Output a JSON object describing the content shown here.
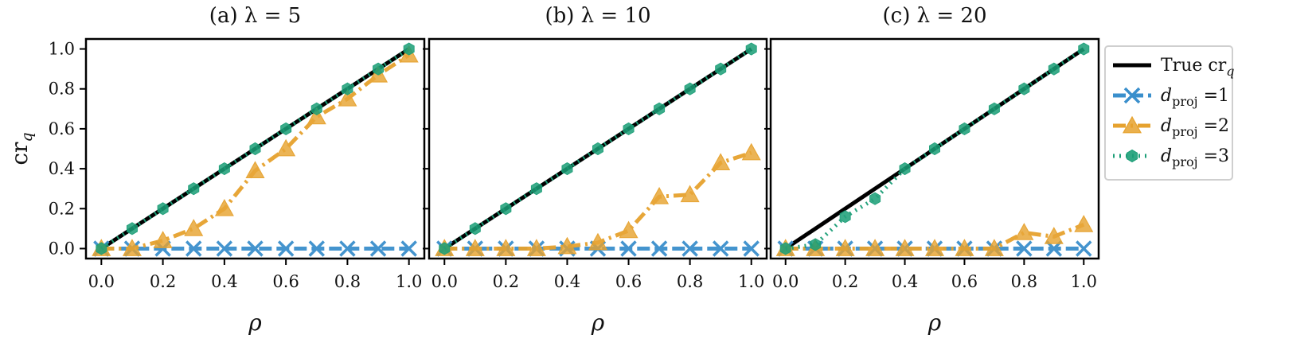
{
  "chart_data": [
    {
      "type": "line",
      "title": "(a) λ = 5",
      "xlabel": "ρ",
      "ylabel": "cr_q",
      "xlim": [
        -0.05,
        1.05
      ],
      "ylim": [
        -0.05,
        1.05
      ],
      "xticks": [
        0.0,
        0.2,
        0.4,
        0.6,
        0.8,
        1.0
      ],
      "yticks": [
        0.0,
        0.2,
        0.4,
        0.6,
        0.8,
        1.0
      ],
      "series": [
        {
          "name": "True cr_q",
          "x": [
            0,
            1
          ],
          "y": [
            0,
            1
          ]
        },
        {
          "name": "d_proj =1",
          "x": [
            0,
            0.1,
            0.2,
            0.3,
            0.4,
            0.5,
            0.6,
            0.7,
            0.8,
            0.9,
            1.0
          ],
          "y": [
            0,
            0,
            0,
            0,
            0,
            0,
            0,
            0,
            0,
            0,
            0
          ]
        },
        {
          "name": "d_proj =2",
          "x": [
            0,
            0.1,
            0.2,
            0.3,
            0.4,
            0.5,
            0.6,
            0.7,
            0.8,
            0.9,
            1.0
          ],
          "y": [
            0,
            0,
            0.04,
            0.1,
            0.2,
            0.39,
            0.5,
            0.66,
            0.75,
            0.87,
            0.97
          ]
        },
        {
          "name": "d_proj =3",
          "x": [
            0,
            0.1,
            0.2,
            0.3,
            0.4,
            0.5,
            0.6,
            0.7,
            0.8,
            0.9,
            1.0
          ],
          "y": [
            0,
            0.1,
            0.2,
            0.3,
            0.4,
            0.5,
            0.6,
            0.7,
            0.8,
            0.9,
            1.0
          ]
        }
      ]
    },
    {
      "type": "line",
      "title": "(b) λ = 10",
      "xlabel": "ρ",
      "xlim": [
        -0.05,
        1.05
      ],
      "ylim": [
        -0.05,
        1.05
      ],
      "xticks": [
        0.0,
        0.2,
        0.4,
        0.6,
        0.8,
        1.0
      ],
      "yticks": [
        0.0,
        0.2,
        0.4,
        0.6,
        0.8,
        1.0
      ],
      "series": [
        {
          "name": "True cr_q",
          "x": [
            0,
            1
          ],
          "y": [
            0,
            1
          ]
        },
        {
          "name": "d_proj =1",
          "x": [
            0,
            0.1,
            0.2,
            0.3,
            0.4,
            0.5,
            0.6,
            0.7,
            0.8,
            0.9,
            1.0
          ],
          "y": [
            0,
            0,
            0,
            0,
            0,
            0,
            0,
            0,
            0,
            0,
            0
          ]
        },
        {
          "name": "d_proj =2",
          "x": [
            0,
            0.1,
            0.2,
            0.3,
            0.4,
            0.5,
            0.6,
            0.7,
            0.8,
            0.9,
            1.0
          ],
          "y": [
            0,
            0,
            0,
            0,
            0.01,
            0.03,
            0.09,
            0.26,
            0.27,
            0.43,
            0.48
          ]
        },
        {
          "name": "d_proj =3",
          "x": [
            0,
            0.1,
            0.2,
            0.3,
            0.4,
            0.5,
            0.6,
            0.7,
            0.8,
            0.9,
            1.0
          ],
          "y": [
            0,
            0.1,
            0.2,
            0.3,
            0.4,
            0.5,
            0.6,
            0.7,
            0.8,
            0.9,
            1.0
          ]
        }
      ]
    },
    {
      "type": "line",
      "title": "(c) λ = 20",
      "xlabel": "ρ",
      "xlim": [
        -0.05,
        1.05
      ],
      "ylim": [
        -0.05,
        1.05
      ],
      "xticks": [
        0.0,
        0.2,
        0.4,
        0.6,
        0.8,
        1.0
      ],
      "yticks": [
        0.0,
        0.2,
        0.4,
        0.6,
        0.8,
        1.0
      ],
      "series": [
        {
          "name": "True cr_q",
          "x": [
            0,
            1
          ],
          "y": [
            0,
            1
          ]
        },
        {
          "name": "d_proj =1",
          "x": [
            0,
            0.1,
            0.2,
            0.3,
            0.4,
            0.5,
            0.6,
            0.7,
            0.8,
            0.9,
            1.0
          ],
          "y": [
            0,
            0,
            0,
            0,
            0,
            0,
            0,
            0,
            0,
            0,
            0
          ]
        },
        {
          "name": "d_proj =2",
          "x": [
            0,
            0.1,
            0.2,
            0.3,
            0.4,
            0.5,
            0.6,
            0.7,
            0.8,
            0.9,
            1.0
          ],
          "y": [
            0,
            0,
            0,
            0,
            0,
            0,
            0,
            0,
            0.08,
            0.06,
            0.12
          ]
        },
        {
          "name": "d_proj =3",
          "x": [
            0,
            0.1,
            0.2,
            0.3,
            0.4,
            0.5,
            0.6,
            0.7,
            0.8,
            0.9,
            1.0
          ],
          "y": [
            0,
            0.02,
            0.16,
            0.25,
            0.4,
            0.5,
            0.6,
            0.7,
            0.8,
            0.9,
            1.0
          ]
        }
      ]
    }
  ],
  "legend": {
    "placement": "right",
    "items": [
      {
        "label": "True cr",
        "sub": "q",
        "color": "#000000",
        "marker": "none",
        "dash": "solid"
      },
      {
        "label": "d",
        "sub": "proj",
        "suffix": " =1",
        "color": "#3a8fcc",
        "marker": "x",
        "dash": "dashed"
      },
      {
        "label": "d",
        "sub": "proj",
        "suffix": " =2",
        "color": "#e6a22e",
        "marker": "triangle",
        "dash": "dashdot"
      },
      {
        "label": "d",
        "sub": "proj",
        "suffix": " =3",
        "color": "#1b9e77",
        "marker": "hexagon",
        "dash": "dotted"
      }
    ]
  },
  "colors": {
    "true": "#000000",
    "d1": "#3a8fcc",
    "d2": "#e6a22e",
    "d3": "#1b9e77"
  }
}
